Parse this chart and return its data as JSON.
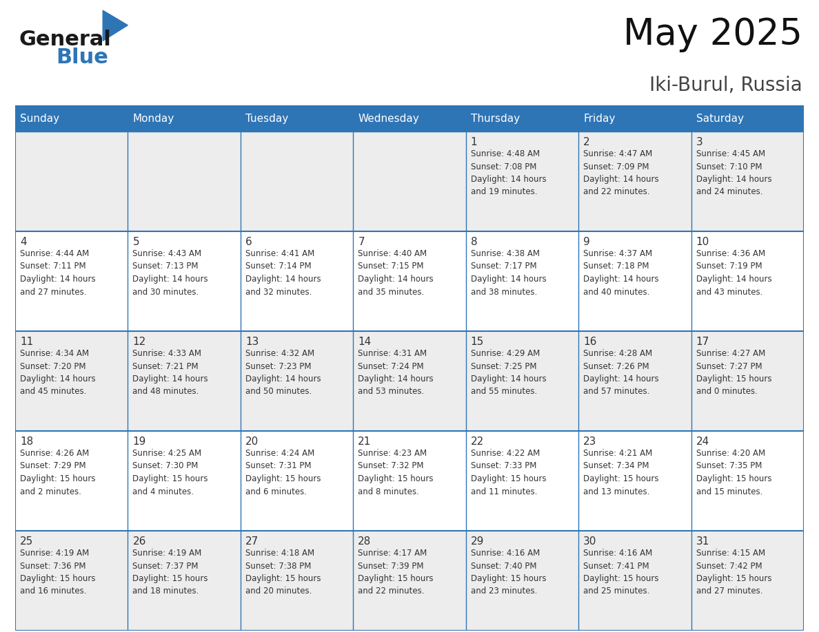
{
  "title": "May 2025",
  "subtitle": "Iki-Burul, Russia",
  "header_color": "#2E75B6",
  "header_text_color": "#FFFFFF",
  "row_bg_odd": "#EDEDED",
  "row_bg_even": "#FFFFFF",
  "text_color": "#333333",
  "line_color": "#2E75B6",
  "days_of_week": [
    "Sunday",
    "Monday",
    "Tuesday",
    "Wednesday",
    "Thursday",
    "Friday",
    "Saturday"
  ],
  "weeks": [
    [
      {
        "day": "",
        "info": ""
      },
      {
        "day": "",
        "info": ""
      },
      {
        "day": "",
        "info": ""
      },
      {
        "day": "",
        "info": ""
      },
      {
        "day": "1",
        "info": "Sunrise: 4:48 AM\nSunset: 7:08 PM\nDaylight: 14 hours\nand 19 minutes."
      },
      {
        "day": "2",
        "info": "Sunrise: 4:47 AM\nSunset: 7:09 PM\nDaylight: 14 hours\nand 22 minutes."
      },
      {
        "day": "3",
        "info": "Sunrise: 4:45 AM\nSunset: 7:10 PM\nDaylight: 14 hours\nand 24 minutes."
      }
    ],
    [
      {
        "day": "4",
        "info": "Sunrise: 4:44 AM\nSunset: 7:11 PM\nDaylight: 14 hours\nand 27 minutes."
      },
      {
        "day": "5",
        "info": "Sunrise: 4:43 AM\nSunset: 7:13 PM\nDaylight: 14 hours\nand 30 minutes."
      },
      {
        "day": "6",
        "info": "Sunrise: 4:41 AM\nSunset: 7:14 PM\nDaylight: 14 hours\nand 32 minutes."
      },
      {
        "day": "7",
        "info": "Sunrise: 4:40 AM\nSunset: 7:15 PM\nDaylight: 14 hours\nand 35 minutes."
      },
      {
        "day": "8",
        "info": "Sunrise: 4:38 AM\nSunset: 7:17 PM\nDaylight: 14 hours\nand 38 minutes."
      },
      {
        "day": "9",
        "info": "Sunrise: 4:37 AM\nSunset: 7:18 PM\nDaylight: 14 hours\nand 40 minutes."
      },
      {
        "day": "10",
        "info": "Sunrise: 4:36 AM\nSunset: 7:19 PM\nDaylight: 14 hours\nand 43 minutes."
      }
    ],
    [
      {
        "day": "11",
        "info": "Sunrise: 4:34 AM\nSunset: 7:20 PM\nDaylight: 14 hours\nand 45 minutes."
      },
      {
        "day": "12",
        "info": "Sunrise: 4:33 AM\nSunset: 7:21 PM\nDaylight: 14 hours\nand 48 minutes."
      },
      {
        "day": "13",
        "info": "Sunrise: 4:32 AM\nSunset: 7:23 PM\nDaylight: 14 hours\nand 50 minutes."
      },
      {
        "day": "14",
        "info": "Sunrise: 4:31 AM\nSunset: 7:24 PM\nDaylight: 14 hours\nand 53 minutes."
      },
      {
        "day": "15",
        "info": "Sunrise: 4:29 AM\nSunset: 7:25 PM\nDaylight: 14 hours\nand 55 minutes."
      },
      {
        "day": "16",
        "info": "Sunrise: 4:28 AM\nSunset: 7:26 PM\nDaylight: 14 hours\nand 57 minutes."
      },
      {
        "day": "17",
        "info": "Sunrise: 4:27 AM\nSunset: 7:27 PM\nDaylight: 15 hours\nand 0 minutes."
      }
    ],
    [
      {
        "day": "18",
        "info": "Sunrise: 4:26 AM\nSunset: 7:29 PM\nDaylight: 15 hours\nand 2 minutes."
      },
      {
        "day": "19",
        "info": "Sunrise: 4:25 AM\nSunset: 7:30 PM\nDaylight: 15 hours\nand 4 minutes."
      },
      {
        "day": "20",
        "info": "Sunrise: 4:24 AM\nSunset: 7:31 PM\nDaylight: 15 hours\nand 6 minutes."
      },
      {
        "day": "21",
        "info": "Sunrise: 4:23 AM\nSunset: 7:32 PM\nDaylight: 15 hours\nand 8 minutes."
      },
      {
        "day": "22",
        "info": "Sunrise: 4:22 AM\nSunset: 7:33 PM\nDaylight: 15 hours\nand 11 minutes."
      },
      {
        "day": "23",
        "info": "Sunrise: 4:21 AM\nSunset: 7:34 PM\nDaylight: 15 hours\nand 13 minutes."
      },
      {
        "day": "24",
        "info": "Sunrise: 4:20 AM\nSunset: 7:35 PM\nDaylight: 15 hours\nand 15 minutes."
      }
    ],
    [
      {
        "day": "25",
        "info": "Sunrise: 4:19 AM\nSunset: 7:36 PM\nDaylight: 15 hours\nand 16 minutes."
      },
      {
        "day": "26",
        "info": "Sunrise: 4:19 AM\nSunset: 7:37 PM\nDaylight: 15 hours\nand 18 minutes."
      },
      {
        "day": "27",
        "info": "Sunrise: 4:18 AM\nSunset: 7:38 PM\nDaylight: 15 hours\nand 20 minutes."
      },
      {
        "day": "28",
        "info": "Sunrise: 4:17 AM\nSunset: 7:39 PM\nDaylight: 15 hours\nand 22 minutes."
      },
      {
        "day": "29",
        "info": "Sunrise: 4:16 AM\nSunset: 7:40 PM\nDaylight: 15 hours\nand 23 minutes."
      },
      {
        "day": "30",
        "info": "Sunrise: 4:16 AM\nSunset: 7:41 PM\nDaylight: 15 hours\nand 25 minutes."
      },
      {
        "day": "31",
        "info": "Sunrise: 4:15 AM\nSunset: 7:42 PM\nDaylight: 15 hours\nand 27 minutes."
      }
    ]
  ],
  "logo_text1": "General",
  "logo_text2": "Blue",
  "logo_color1": "#1a1a1a",
  "logo_color2": "#2E75B6",
  "logo_triangle_color": "#2E75B6",
  "title_fontsize": 38,
  "subtitle_fontsize": 20,
  "header_fontsize": 11,
  "day_num_fontsize": 11,
  "info_fontsize": 8.5
}
